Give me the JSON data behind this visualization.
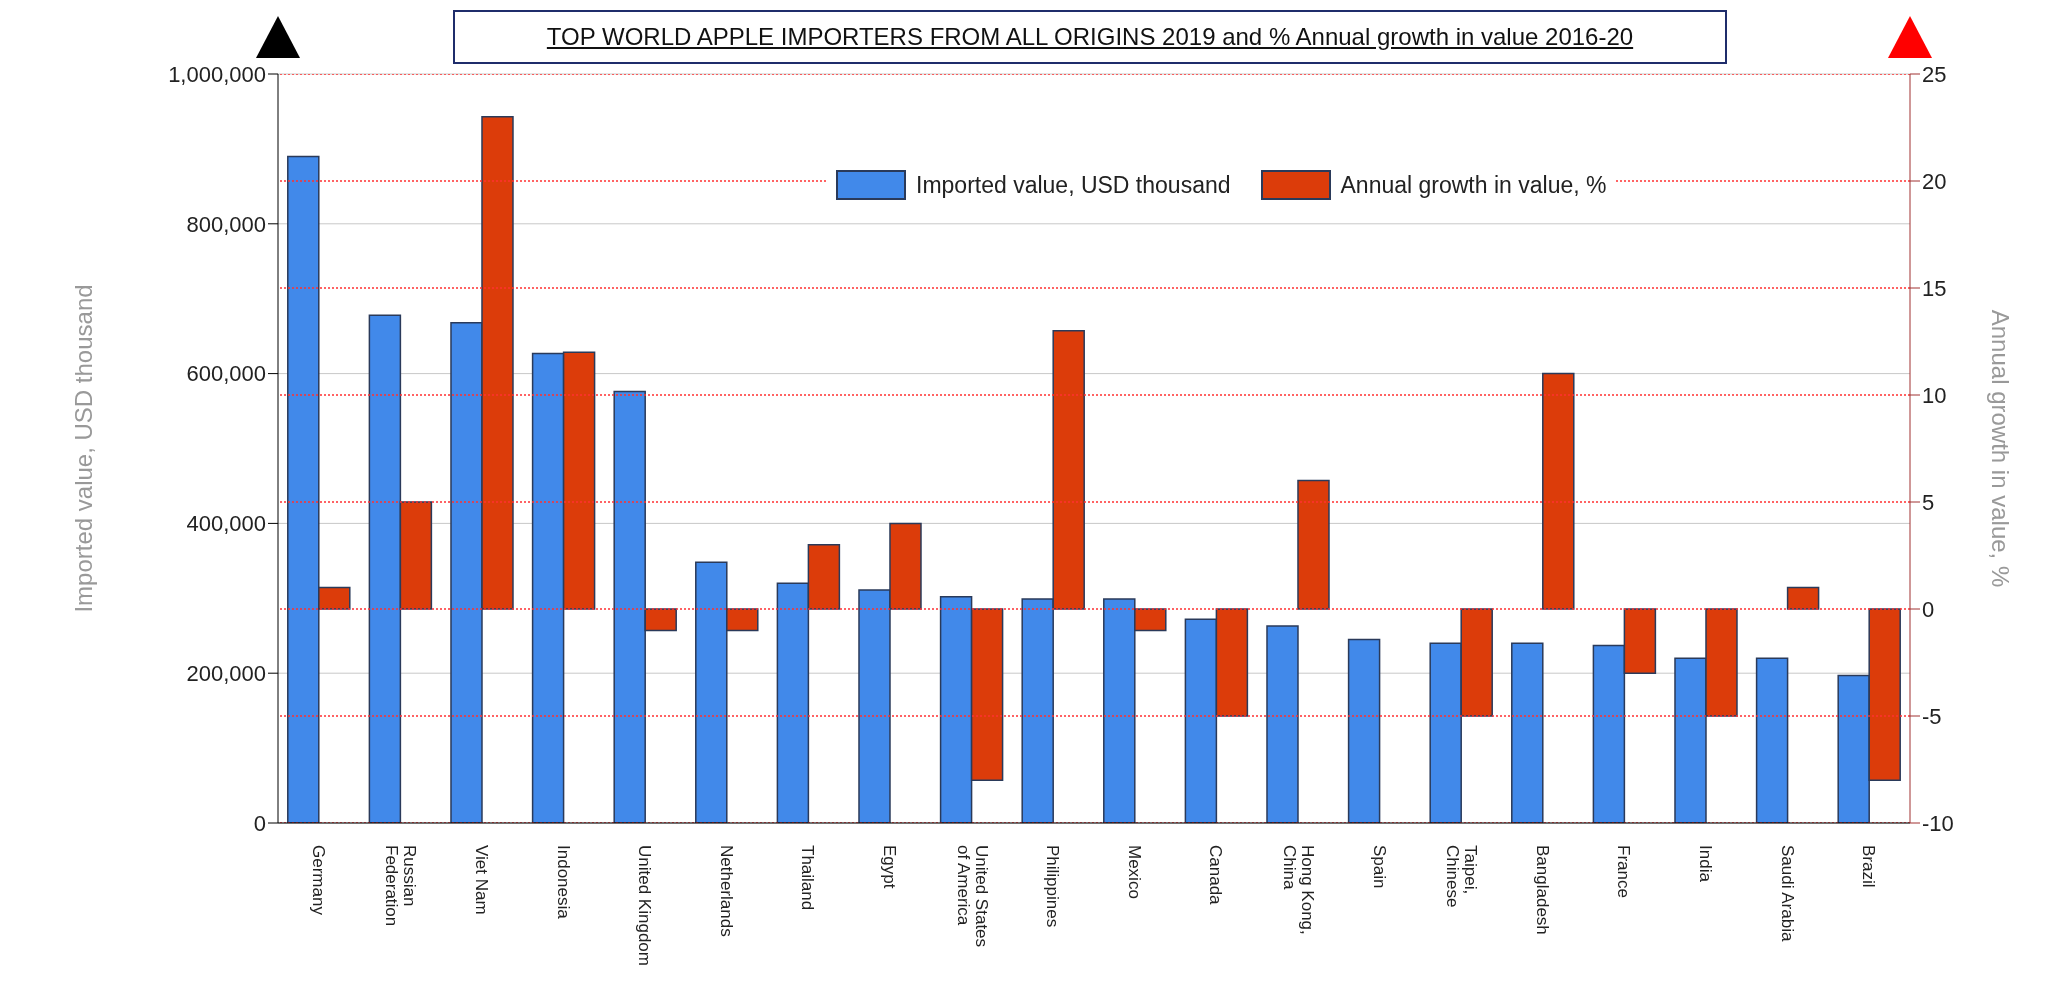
{
  "chart_data": {
    "type": "bar",
    "title": "TOP WORLD APPLE IMPORTERS FROM ALL ORIGINS 2019 and  % Annual growth in value 2016-20",
    "ylabel": "Imported value, USD thousand",
    "y2label": "Annual growth in value, %",
    "categories": [
      "Germany",
      "Russian Federation",
      "Viet Nam",
      "Indonesia",
      "United Kingdom",
      "Netherlands",
      "Thailand",
      "Egypt",
      "United States of America",
      "Philippines",
      "Mexico",
      "Canada",
      "Hong Kong, China",
      "Spain",
      "Taipei, Chinese",
      "Bangladesh",
      "France",
      "India",
      "Saudi Arabia",
      "Brazil"
    ],
    "series": [
      {
        "name": "Imported value, USD thousand",
        "color": "#4189ea",
        "values": [
          890000,
          678000,
          668000,
          627000,
          576000,
          348000,
          320000,
          311000,
          302000,
          299000,
          299000,
          272000,
          263000,
          245000,
          240000,
          240000,
          237000,
          220000,
          220000,
          197000
        ]
      },
      {
        "name": "Annual growth in value, %",
        "color": "#dc3c0a",
        "axis": "y2",
        "values": [
          1,
          5,
          23,
          12,
          -1,
          -1,
          3,
          4,
          -8,
          13,
          -1,
          -5,
          6,
          null,
          -5,
          11,
          -3,
          -5,
          1,
          -8
        ]
      }
    ],
    "ylim": [
      0,
      1000000
    ],
    "yticks": [
      0,
      {
        "value": 200000,
        "label": "200,000"
      },
      {
        "value": 400000,
        "label": "400,000"
      },
      {
        "value": 600000,
        "label": "600,000"
      },
      {
        "value": 800000,
        "label": "800,000"
      },
      {
        "value": 1000000,
        "label": "1,000,000"
      }
    ],
    "y2lim": [
      -10,
      25
    ],
    "y2ticks": [
      -10,
      -5,
      0,
      5,
      10,
      15,
      20,
      25
    ],
    "grid": true,
    "legend": "top right"
  }
}
